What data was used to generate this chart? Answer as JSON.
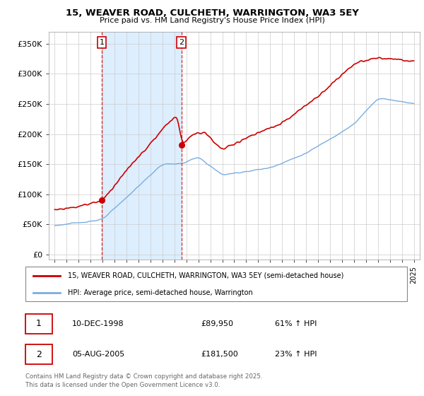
{
  "title_line1": "15, WEAVER ROAD, CULCHETH, WARRINGTON, WA3 5EY",
  "title_line2": "Price paid vs. HM Land Registry's House Price Index (HPI)",
  "background_color": "#ffffff",
  "plot_bg_color": "#ffffff",
  "grid_color": "#cccccc",
  "red_line_color": "#cc0000",
  "blue_line_color": "#7aade0",
  "shade_color": "#ddeeff",
  "marker1_year": 1998.92,
  "marker1_value": 89950,
  "marker1_label": "1",
  "marker2_year": 2005.58,
  "marker2_value": 181500,
  "marker2_label": "2",
  "legend_entry1": "15, WEAVER ROAD, CULCHETH, WARRINGTON, WA3 5EY (semi-detached house)",
  "legend_entry2": "HPI: Average price, semi-detached house, Warrington",
  "table_row1_num": "1",
  "table_row1_date": "10-DEC-1998",
  "table_row1_price": "£89,950",
  "table_row1_hpi": "61% ↑ HPI",
  "table_row2_num": "2",
  "table_row2_date": "05-AUG-2005",
  "table_row2_price": "£181,500",
  "table_row2_hpi": "23% ↑ HPI",
  "footer": "Contains HM Land Registry data © Crown copyright and database right 2025.\nThis data is licensed under the Open Government Licence v3.0.",
  "yticks": [
    0,
    50000,
    100000,
    150000,
    200000,
    250000,
    300000,
    350000
  ],
  "ytick_labels": [
    "£0",
    "£50K",
    "£100K",
    "£150K",
    "£200K",
    "£250K",
    "£300K",
    "£350K"
  ],
  "xlim_start": 1994.5,
  "xlim_end": 2025.5,
  "ylim_bottom": -8000,
  "ylim_top": 370000
}
